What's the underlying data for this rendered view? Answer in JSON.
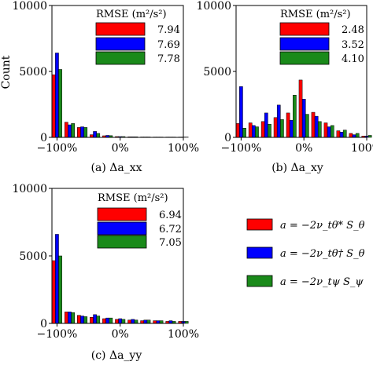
{
  "figure": {
    "ylabel": "Count",
    "series_colors": [
      "#ff0000",
      "#0000ff",
      "#1a8a1a"
    ],
    "global_legend": [
      {
        "label": "a = −2ν_tθ* S_θ",
        "color": "#ff0000"
      },
      {
        "label": "a = −2ν_tθ† S_θ",
        "color": "#0000ff"
      },
      {
        "label": "a = −2ν_tψ S_ψ",
        "color": "#1a8a1a"
      }
    ]
  },
  "chart_data": [
    {
      "type": "bar",
      "id": "a",
      "caption": "(a) Δa_xx",
      "x": [
        -100,
        -80,
        -60,
        -40,
        -20,
        0,
        20,
        40,
        60,
        80,
        100
      ],
      "xticks": [
        "−100%",
        "0%",
        "100%"
      ],
      "xlim": [
        -108,
        100
      ],
      "ylim": [
        0,
        10000
      ],
      "yticks": [
        "0",
        "5000",
        "10000"
      ],
      "legend_title": "RMSE (m²/s²)",
      "series": [
        {
          "rmse": "7.94",
          "values": [
            4750,
            1150,
            750,
            200,
            120,
            60,
            40,
            30,
            20,
            15,
            10
          ]
        },
        {
          "rmse": "7.69",
          "values": [
            6400,
            950,
            800,
            450,
            150,
            60,
            40,
            30,
            20,
            15,
            10
          ]
        },
        {
          "rmse": "7.78",
          "values": [
            5150,
            1050,
            750,
            300,
            130,
            60,
            40,
            30,
            20,
            15,
            10
          ]
        }
      ]
    },
    {
      "type": "bar",
      "id": "b",
      "caption": "(b) Δa_xy",
      "x": [
        -100,
        -80,
        -60,
        -40,
        -20,
        0,
        20,
        40,
        60,
        80,
        100
      ],
      "xticks": [
        "−100%",
        "0%",
        "100%"
      ],
      "xlim": [
        -108,
        100
      ],
      "ylim": [
        0,
        10000
      ],
      "yticks": [
        "0",
        "5000",
        "10000"
      ],
      "legend_title": "RMSE (m²/s²)",
      "series": [
        {
          "rmse": "2.48",
          "values": [
            1050,
            1100,
            1200,
            1500,
            1850,
            4350,
            1900,
            1100,
            500,
            300,
            100
          ]
        },
        {
          "rmse": "3.52",
          "values": [
            3850,
            900,
            1850,
            2450,
            1300,
            2900,
            1600,
            800,
            400,
            200,
            100
          ]
        },
        {
          "rmse": "4.10",
          "values": [
            700,
            800,
            1000,
            1350,
            3200,
            1750,
            1200,
            900,
            550,
            300,
            150
          ]
        }
      ]
    },
    {
      "type": "bar",
      "id": "c",
      "caption": "(c) Δa_yy",
      "x": [
        -100,
        -80,
        -60,
        -40,
        -20,
        0,
        20,
        40,
        60,
        80,
        100
      ],
      "xticks": [
        "−100%",
        "0%",
        "100%"
      ],
      "xlim": [
        -108,
        100
      ],
      "ylim": [
        0,
        10000
      ],
      "yticks": [
        "0",
        "5000",
        "10000"
      ],
      "legend_title": "RMSE (m²/s²)",
      "series": [
        {
          "rmse": "6.94",
          "values": [
            4650,
            850,
            600,
            450,
            350,
            300,
            250,
            200,
            200,
            150,
            150
          ]
        },
        {
          "rmse": "6.72",
          "values": [
            6600,
            850,
            550,
            650,
            400,
            350,
            300,
            250,
            200,
            200,
            150
          ]
        },
        {
          "rmse": "7.05",
          "values": [
            5000,
            800,
            500,
            550,
            400,
            300,
            250,
            250,
            200,
            150,
            150
          ]
        }
      ]
    }
  ]
}
